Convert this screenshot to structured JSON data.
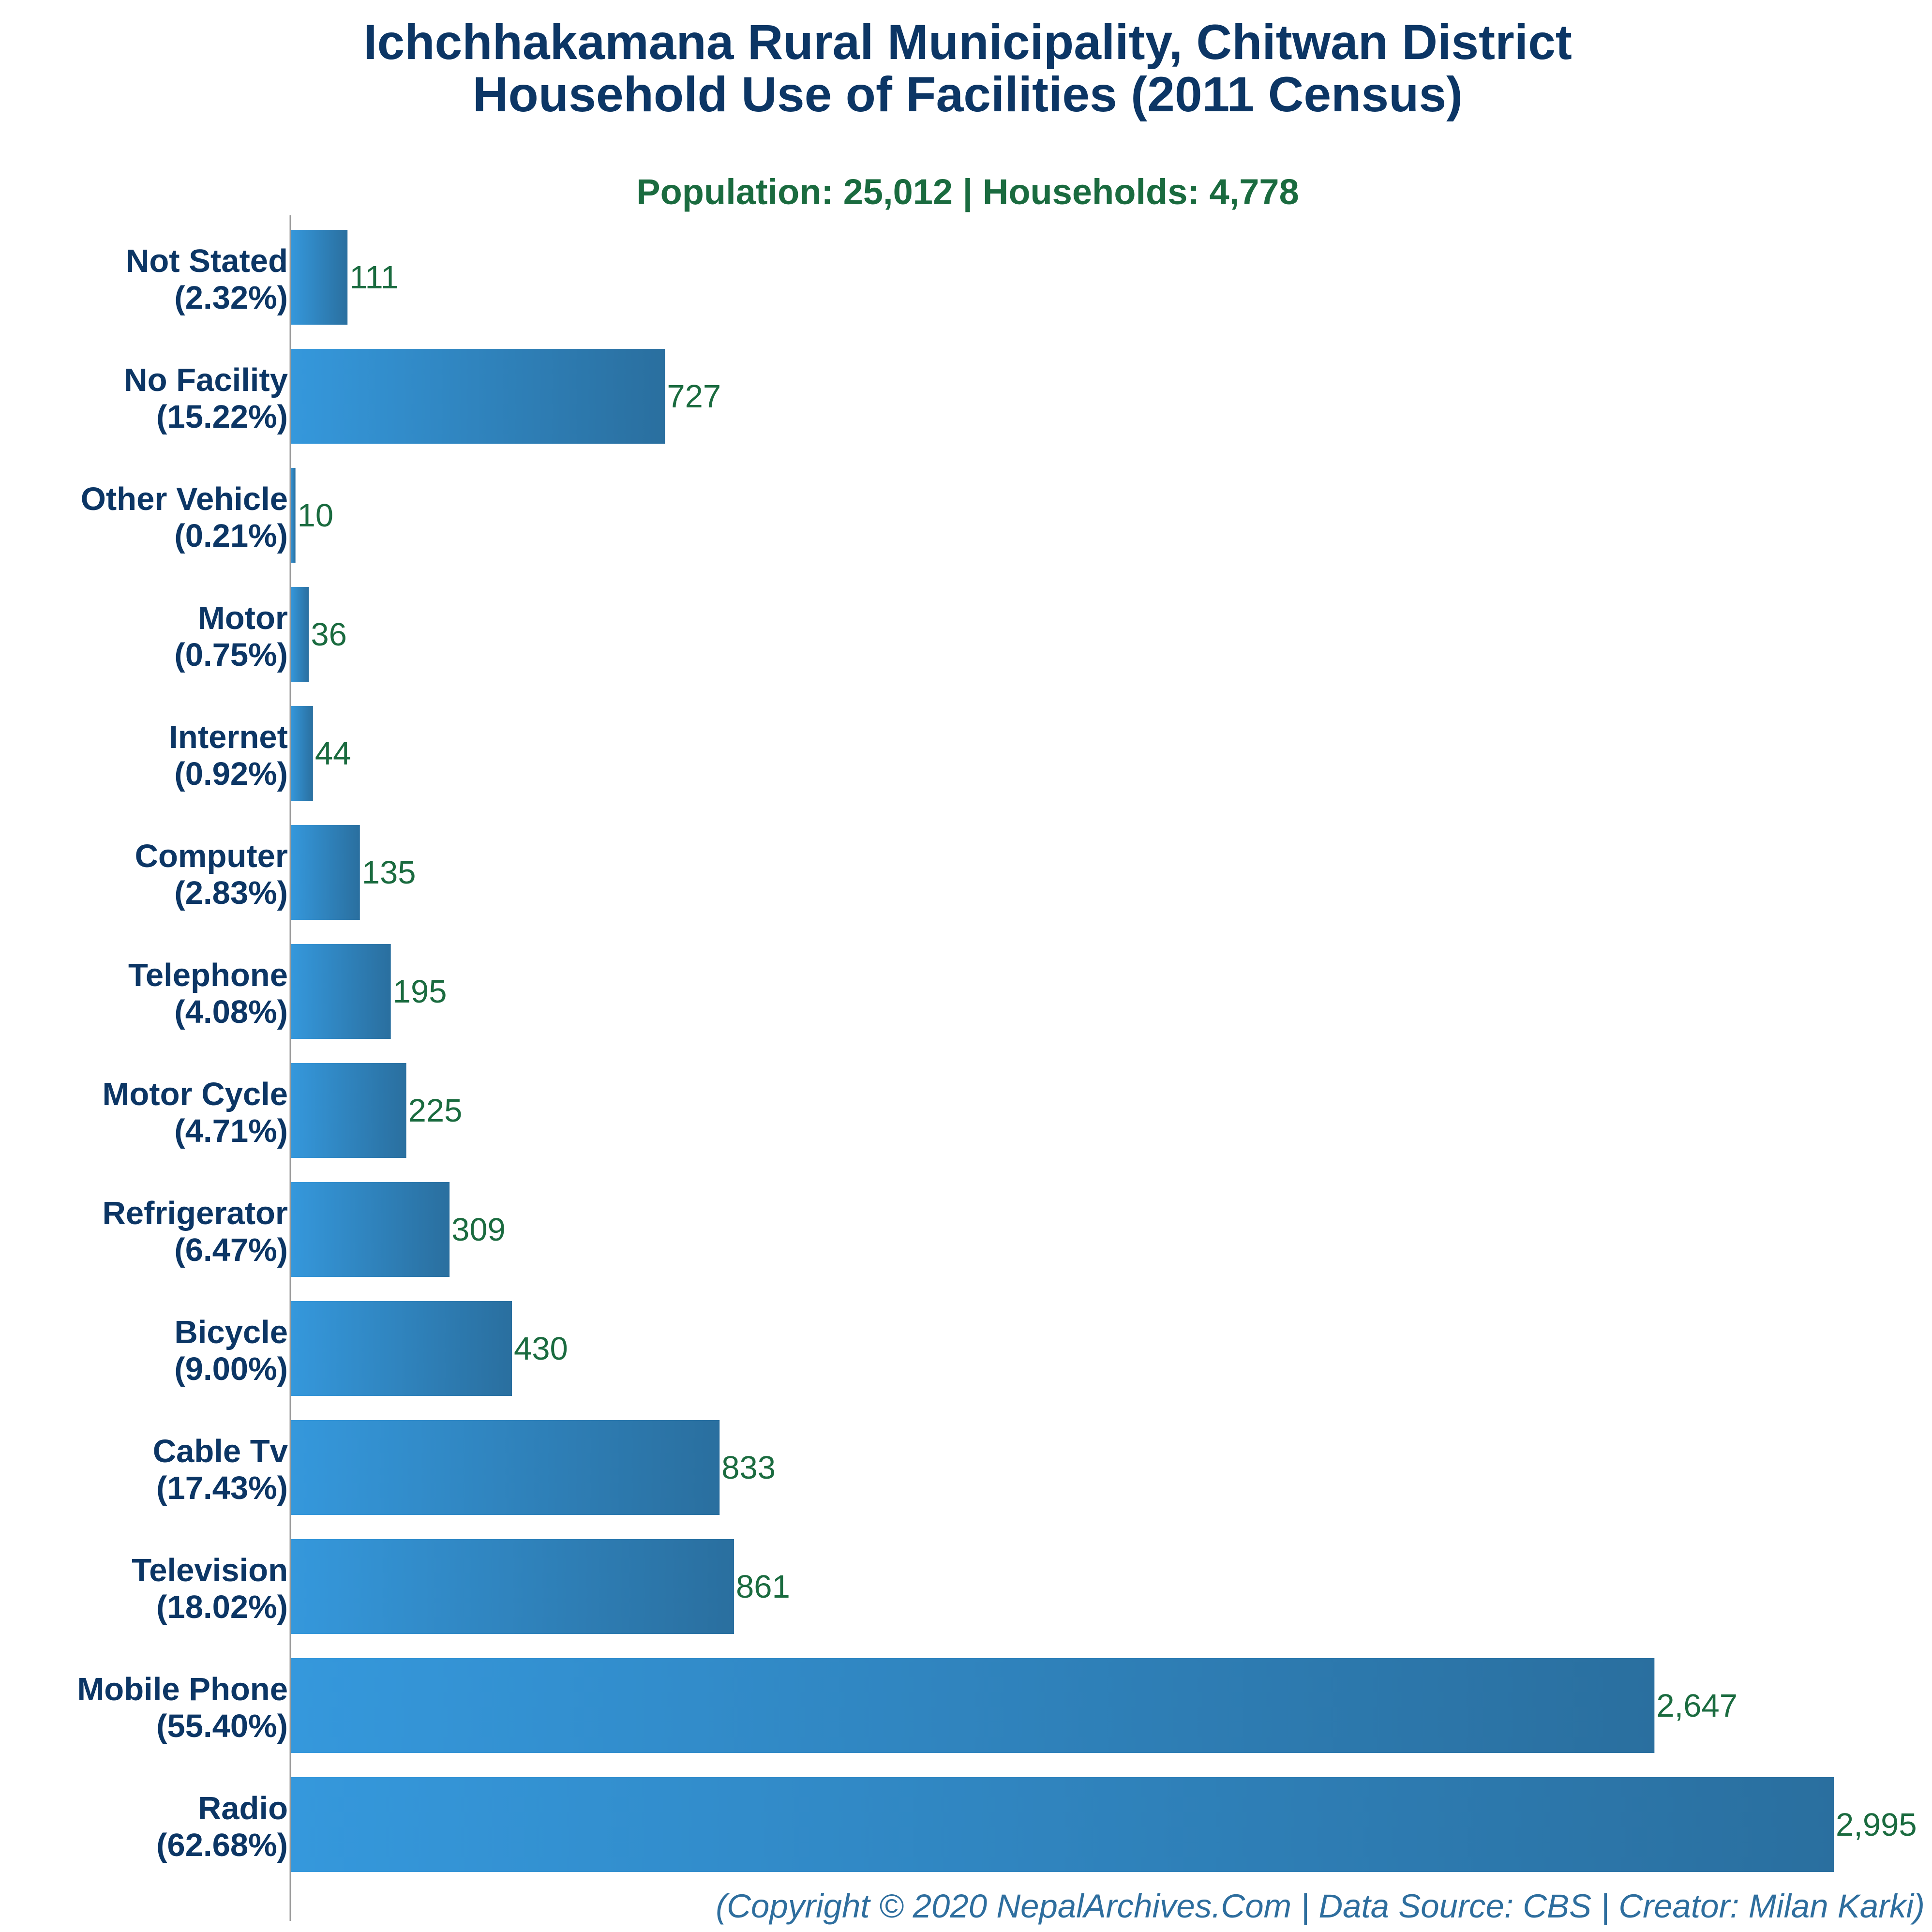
{
  "chart_data": {
    "type": "bar",
    "orientation": "horizontal",
    "title_line1": "Ichchhakamana Rural Municipality, Chitwan District",
    "title_line2": "Household Use of Facilities (2011 Census)",
    "subtitle": "Population: 25,012 | Households: 4,778",
    "categories": [
      "Not Stated",
      "No Facility",
      "Other Vehicle",
      "Motor",
      "Internet",
      "Computer",
      "Telephone",
      "Motor Cycle",
      "Refrigerator",
      "Bicycle",
      "Cable Tv",
      "Television",
      "Mobile Phone",
      "Radio"
    ],
    "percentages": [
      "(2.32%)",
      "(15.22%)",
      "(0.21%)",
      "(0.75%)",
      "(0.92%)",
      "(2.83%)",
      "(4.08%)",
      "(4.71%)",
      "(6.47%)",
      "(9.00%)",
      "(17.43%)",
      "(18.02%)",
      "(55.40%)",
      "(62.68%)"
    ],
    "values": [
      111,
      727,
      10,
      36,
      44,
      135,
      195,
      225,
      309,
      430,
      833,
      861,
      2647,
      2995
    ],
    "value_labels": [
      "111",
      "727",
      "10",
      "36",
      "44",
      "135",
      "195",
      "225",
      "309",
      "430",
      "833",
      "861",
      "2,647",
      "2,995"
    ],
    "xlabel": "",
    "ylabel": "",
    "grid": false,
    "legend": "none",
    "colors": {
      "bar_left": "#3598dc",
      "bar_right": "#2a6f9f",
      "title": "#0c3665",
      "subtitle": "#1a6b3f",
      "category_label": "#0c3665",
      "value_label": "#1a6b3f",
      "footer": "#2e6e9e",
      "axis": "#999999"
    }
  },
  "footer": "(Copyright © 2020 NepalArchives.Com | Data Source: CBS | Creator: Milan Karki)"
}
